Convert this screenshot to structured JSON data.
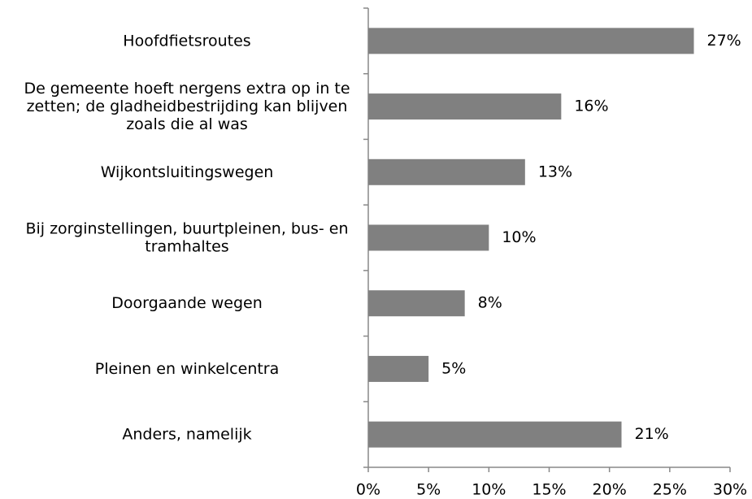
{
  "chart_data": {
    "type": "barh",
    "categories": [
      "Hoofdfietsroutes",
      "De gemeente hoeft nergens extra op in te zetten; de gladheidbestrijding kan blijven zoals die al was",
      "Wijkontsluitingswegen",
      "Bij zorginstellingen, buurtpleinen, bus- en tramhaltes",
      "Doorgaande wegen",
      "Pleinen en winkelcentra",
      "Anders, namelijk"
    ],
    "values": [
      27,
      16,
      13,
      10,
      8,
      5,
      21
    ],
    "value_labels": [
      "27%",
      "16%",
      "13%",
      "10%",
      "8%",
      "5%",
      "21%"
    ],
    "color": "#808080",
    "xlim": [
      0,
      30
    ],
    "xticks": [
      {
        "value": 0,
        "label": "0%"
      },
      {
        "value": 5,
        "label": "5%"
      },
      {
        "value": 10,
        "label": "10%"
      },
      {
        "value": 15,
        "label": "15%"
      },
      {
        "value": 20,
        "label": "20%"
      },
      {
        "value": 25,
        "label": "25%"
      },
      {
        "value": 30,
        "label": "30%"
      }
    ]
  }
}
